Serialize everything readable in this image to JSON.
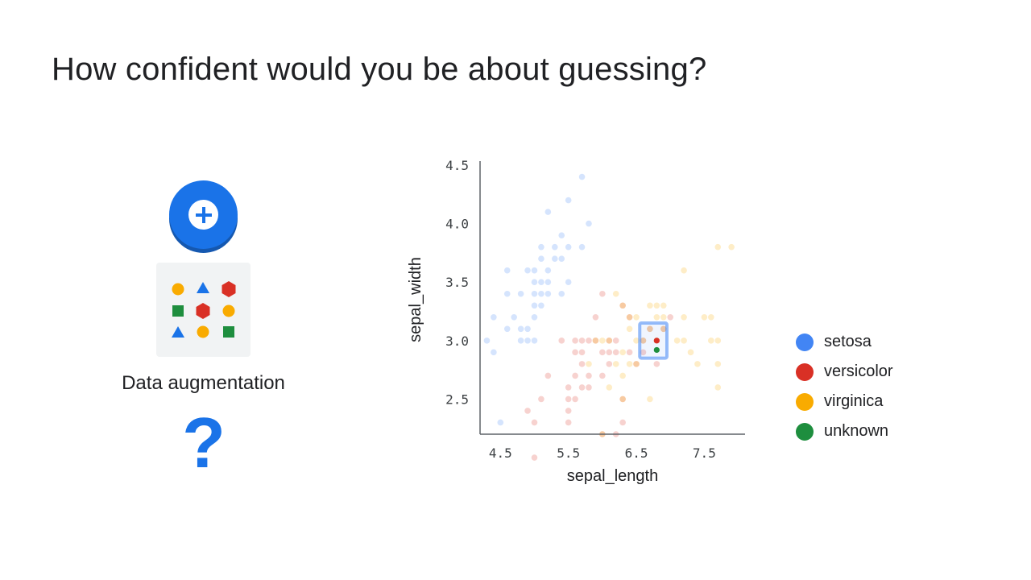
{
  "slide": {
    "title": "How confident would you be about guessing?",
    "augmentation_label": "Data augmentation",
    "question_mark": "?",
    "icons": [
      "plus-icon",
      "shape-grid-icon",
      "question-icon"
    ]
  },
  "colors": {
    "setosa": "#4285f4",
    "versicolor": "#d93025",
    "virginica": "#f9ab00",
    "unknown": "#1e8e3e",
    "accent": "#1a73e8"
  },
  "legend": [
    {
      "label": "setosa",
      "color": "#4285f4"
    },
    {
      "label": "versicolor",
      "color": "#d93025"
    },
    {
      "label": "virginica",
      "color": "#f9ab00"
    },
    {
      "label": "unknown",
      "color": "#1e8e3e"
    }
  ],
  "chart_data": {
    "type": "scatter",
    "xlabel": "sepal_length",
    "ylabel": "sepal_width",
    "xlim": [
      4.2,
      8.1
    ],
    "ylim": [
      2.2,
      4.5
    ],
    "xticks": [
      "4.5",
      "5.5",
      "6.5",
      "7.5"
    ],
    "yticks": [
      "2.5",
      "3.0",
      "3.5",
      "4.0",
      "4.5"
    ],
    "grid": false,
    "legend_position": "right",
    "highlight": {
      "x": [
        6.55,
        6.95
      ],
      "y": [
        2.85,
        3.15
      ]
    },
    "series": [
      {
        "name": "setosa",
        "color": "#4285f4",
        "faded": true,
        "points": [
          [
            4.3,
            3.0
          ],
          [
            4.4,
            2.9
          ],
          [
            4.4,
            3.2
          ],
          [
            4.5,
            2.3
          ],
          [
            4.6,
            3.1
          ],
          [
            4.6,
            3.4
          ],
          [
            4.6,
            3.6
          ],
          [
            4.7,
            3.2
          ],
          [
            4.8,
            3.0
          ],
          [
            4.8,
            3.4
          ],
          [
            4.8,
            3.1
          ],
          [
            4.9,
            3.0
          ],
          [
            4.9,
            3.1
          ],
          [
            5.0,
            3.6
          ],
          [
            5.0,
            3.4
          ],
          [
            5.0,
            3.0
          ],
          [
            5.0,
            3.3
          ],
          [
            5.0,
            3.2
          ],
          [
            5.0,
            3.5
          ],
          [
            5.1,
            3.5
          ],
          [
            5.1,
            3.8
          ],
          [
            5.1,
            3.3
          ],
          [
            5.1,
            3.7
          ],
          [
            5.2,
            3.4
          ],
          [
            5.2,
            4.1
          ],
          [
            5.2,
            3.5
          ],
          [
            5.3,
            3.7
          ],
          [
            5.4,
            3.9
          ],
          [
            5.4,
            3.4
          ],
          [
            5.4,
            3.7
          ],
          [
            5.5,
            4.2
          ],
          [
            5.5,
            3.5
          ],
          [
            5.7,
            4.4
          ],
          [
            5.7,
            3.8
          ],
          [
            5.8,
            4.0
          ],
          [
            5.2,
            3.6
          ],
          [
            5.1,
            3.4
          ],
          [
            4.9,
            3.6
          ],
          [
            5.5,
            3.8
          ],
          [
            5.3,
            3.8
          ]
        ]
      },
      {
        "name": "versicolor",
        "color": "#d93025",
        "faded": true,
        "points": [
          [
            4.9,
            2.4
          ],
          [
            5.0,
            2.0
          ],
          [
            5.0,
            2.3
          ],
          [
            5.1,
            2.5
          ],
          [
            5.2,
            2.7
          ],
          [
            5.4,
            3.0
          ],
          [
            5.5,
            2.3
          ],
          [
            5.5,
            2.4
          ],
          [
            5.5,
            2.5
          ],
          [
            5.5,
            2.6
          ],
          [
            5.6,
            2.9
          ],
          [
            5.6,
            3.0
          ],
          [
            5.6,
            2.5
          ],
          [
            5.6,
            2.7
          ],
          [
            5.7,
            2.8
          ],
          [
            5.7,
            2.6
          ],
          [
            5.7,
            3.0
          ],
          [
            5.7,
            2.9
          ],
          [
            5.8,
            2.7
          ],
          [
            5.8,
            2.6
          ],
          [
            5.9,
            3.0
          ],
          [
            5.9,
            3.2
          ],
          [
            6.0,
            2.2
          ],
          [
            6.0,
            2.9
          ],
          [
            6.0,
            2.7
          ],
          [
            6.0,
            3.4
          ],
          [
            6.1,
            2.8
          ],
          [
            6.1,
            2.9
          ],
          [
            6.1,
            3.0
          ],
          [
            6.2,
            2.2
          ],
          [
            6.2,
            2.9
          ],
          [
            6.3,
            3.3
          ],
          [
            6.3,
            2.5
          ],
          [
            6.3,
            2.3
          ],
          [
            6.4,
            3.2
          ],
          [
            6.4,
            2.9
          ],
          [
            6.5,
            2.8
          ],
          [
            6.6,
            2.9
          ],
          [
            6.6,
            3.0
          ],
          [
            6.7,
            3.1
          ],
          [
            6.8,
            2.8
          ],
          [
            6.9,
            3.1
          ],
          [
            7.0,
            3.2
          ],
          [
            5.8,
            3.0
          ],
          [
            6.2,
            3.0
          ]
        ]
      },
      {
        "name": "virginica",
        "color": "#f9ab00",
        "faded": true,
        "points": [
          [
            5.8,
            2.8
          ],
          [
            5.9,
            3.0
          ],
          [
            6.0,
            2.2
          ],
          [
            6.0,
            3.0
          ],
          [
            6.1,
            2.6
          ],
          [
            6.1,
            3.0
          ],
          [
            6.2,
            2.8
          ],
          [
            6.2,
            3.4
          ],
          [
            6.3,
            3.3
          ],
          [
            6.3,
            2.9
          ],
          [
            6.3,
            2.7
          ],
          [
            6.3,
            2.5
          ],
          [
            6.4,
            3.2
          ],
          [
            6.4,
            2.8
          ],
          [
            6.4,
            3.1
          ],
          [
            6.5,
            3.0
          ],
          [
            6.5,
            3.2
          ],
          [
            6.5,
            2.8
          ],
          [
            6.7,
            2.5
          ],
          [
            6.7,
            3.3
          ],
          [
            6.7,
            3.1
          ],
          [
            6.8,
            3.0
          ],
          [
            6.8,
            3.2
          ],
          [
            6.9,
            3.2
          ],
          [
            6.9,
            3.1
          ],
          [
            7.1,
            3.0
          ],
          [
            7.2,
            3.6
          ],
          [
            7.2,
            3.0
          ],
          [
            7.2,
            3.2
          ],
          [
            7.4,
            2.8
          ],
          [
            7.6,
            3.0
          ],
          [
            7.7,
            3.8
          ],
          [
            7.7,
            2.6
          ],
          [
            7.7,
            2.8
          ],
          [
            7.9,
            3.8
          ],
          [
            7.7,
            3.0
          ],
          [
            6.9,
            3.3
          ],
          [
            6.6,
            3.0
          ],
          [
            6.8,
            3.3
          ],
          [
            7.3,
            2.9
          ],
          [
            7.5,
            3.2
          ],
          [
            7.6,
            3.2
          ]
        ]
      },
      {
        "name": "highlighted",
        "color": "#d93025",
        "faded": false,
        "points": [
          [
            6.8,
            3.0
          ]
        ]
      },
      {
        "name": "unknown",
        "color": "#1e8e3e",
        "faded": false,
        "points": [
          [
            6.8,
            2.92
          ]
        ]
      }
    ]
  }
}
